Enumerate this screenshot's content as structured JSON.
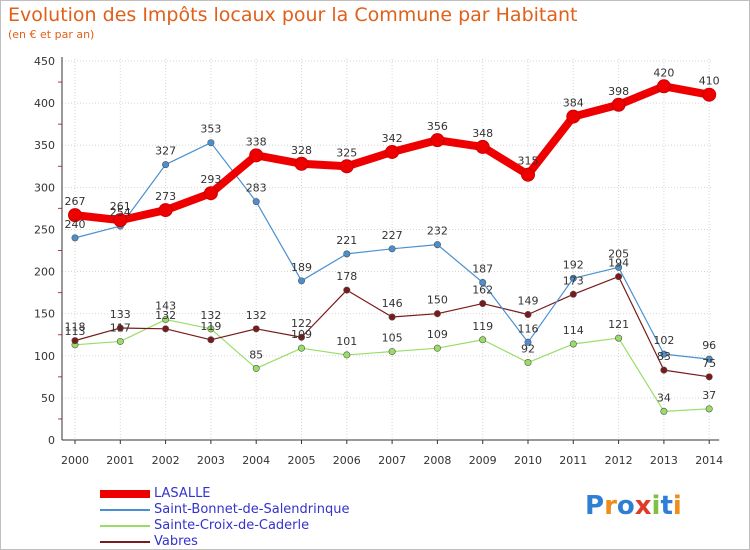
{
  "header": {
    "title": "Evolution des Impôts locaux pour la Commune par Habitant",
    "subtitle": "(en € et par an)"
  },
  "chart_data": {
    "type": "line",
    "title": "Evolution des Impôts locaux pour la Commune par Habitant",
    "subtitle": "(en € et par an)",
    "xlabel": "",
    "ylabel": "",
    "categories": [
      "2000",
      "2001",
      "2002",
      "2003",
      "2004",
      "2005",
      "2006",
      "2007",
      "2008",
      "2009",
      "2010",
      "2011",
      "2012",
      "2013",
      "2014"
    ],
    "ylim": [
      0,
      450
    ],
    "yticks": [
      0,
      50,
      100,
      150,
      200,
      250,
      300,
      350,
      400,
      450
    ],
    "grid": true,
    "legend_position": "bottom-left",
    "series": [
      {
        "name": "LASALLE",
        "color": "#ee0000",
        "values": [
          267,
          261,
          273,
          293,
          338,
          328,
          325,
          342,
          356,
          348,
          315,
          384,
          398,
          420,
          410
        ]
      },
      {
        "name": "Saint-Bonnet-de-Salendrinque",
        "color": "#4a90d0",
        "values": [
          240,
          254,
          327,
          353,
          283,
          189,
          221,
          227,
          232,
          187,
          116,
          192,
          205,
          102,
          96
        ]
      },
      {
        "name": "Sainte-Croix-de-Caderle",
        "color": "#99dd66",
        "values": [
          113,
          117,
          143,
          132,
          85,
          109,
          101,
          105,
          109,
          119,
          92,
          114,
          121,
          34,
          37
        ]
      },
      {
        "name": "Vabres",
        "color": "#7a1a1a",
        "values": [
          118,
          133,
          132,
          119,
          132,
          122,
          178,
          146,
          150,
          162,
          149,
          173,
          194,
          83,
          75
        ]
      }
    ]
  },
  "logo": {
    "letters": [
      "P",
      "r",
      "o",
      "x",
      "i",
      "t",
      "i"
    ],
    "colors": [
      "#2f7fd4",
      "#f08c1a",
      "#2f7fd4",
      "#e03a2a",
      "#7cc142",
      "#2f7fd4",
      "#f08c1a"
    ]
  }
}
